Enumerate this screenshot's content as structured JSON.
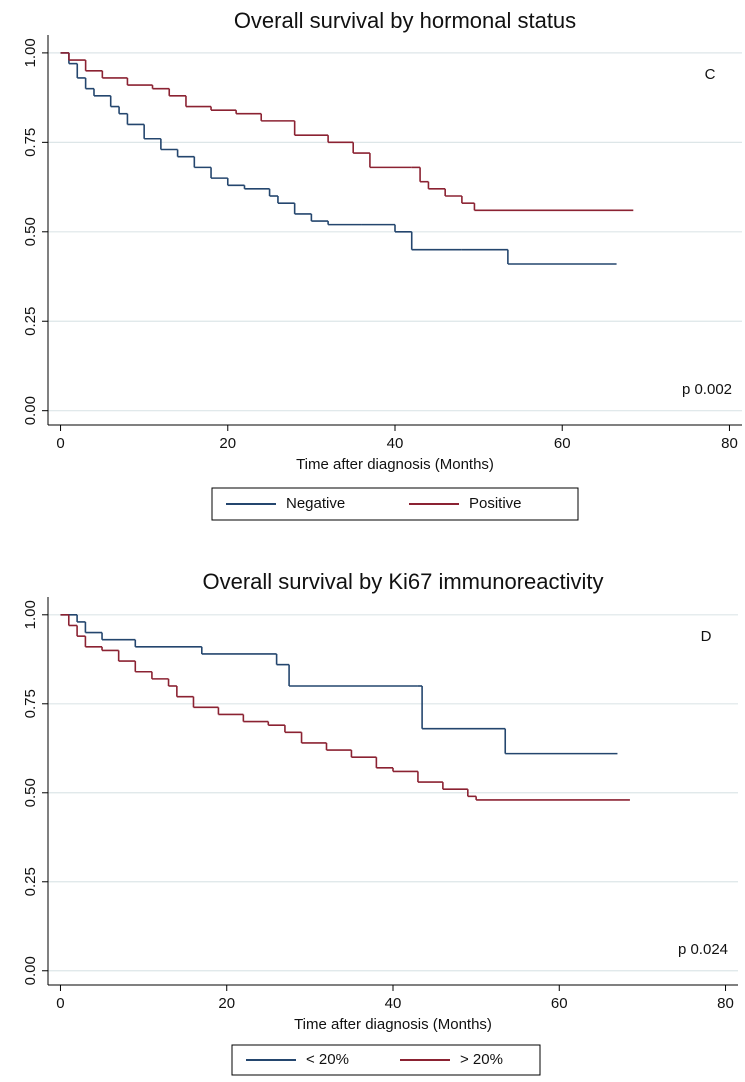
{
  "chart_data": [
    {
      "type": "step",
      "title": "Overall survival by hormonal status",
      "x_label": "Time after diagnosis (Months)",
      "panel_label": "C",
      "p_value_text": "p 0.002",
      "xlim": [
        -1.5,
        81.5
      ],
      "xticks": [
        0,
        20,
        40,
        60,
        80
      ],
      "ylim": [
        -0.04,
        1.05
      ],
      "yticks": [
        {
          "value": 0,
          "label": "0.00"
        },
        {
          "value": 0.25,
          "label": "0.25"
        },
        {
          "value": 0.5,
          "label": "0.50"
        },
        {
          "value": 0.75,
          "label": "0.75"
        },
        {
          "value": 1,
          "label": "1.00"
        }
      ],
      "grid": true,
      "series": [
        {
          "name": "Negative",
          "color": "#24466e",
          "x": [
            0,
            1,
            2,
            3,
            4,
            6,
            7,
            8,
            10,
            12,
            14,
            16,
            18,
            20,
            22,
            25,
            26,
            28,
            30,
            32,
            36,
            40,
            42,
            48,
            53.5,
            66.5
          ],
          "values": [
            1,
            0.97,
            0.93,
            0.9,
            0.88,
            0.85,
            0.83,
            0.8,
            0.76,
            0.73,
            0.71,
            0.68,
            0.65,
            0.63,
            0.62,
            0.6,
            0.58,
            0.55,
            0.53,
            0.52,
            0.52,
            0.5,
            0.45,
            0.45,
            0.41,
            0.41
          ]
        },
        {
          "name": "Positive",
          "color": "#8b2232",
          "x": [
            0,
            1,
            3,
            5,
            8,
            11,
            13,
            15,
            18,
            21,
            24,
            28,
            32,
            35,
            37,
            42,
            43,
            44,
            46,
            48,
            49.5,
            68.5
          ],
          "values": [
            1,
            0.98,
            0.95,
            0.93,
            0.91,
            0.9,
            0.88,
            0.85,
            0.84,
            0.83,
            0.81,
            0.77,
            0.75,
            0.72,
            0.68,
            0.68,
            0.64,
            0.62,
            0.6,
            0.58,
            0.56,
            0.56
          ]
        }
      ]
    },
    {
      "type": "step",
      "title": "Overall survival by Ki67 immunoreactivity",
      "x_label": "Time after diagnosis (Months)",
      "panel_label": "D",
      "p_value_text": "p 0.024",
      "xlim": [
        -1.5,
        81.5
      ],
      "xticks": [
        0,
        20,
        40,
        60,
        80
      ],
      "ylim": [
        -0.04,
        1.05
      ],
      "yticks": [
        {
          "value": 0,
          "label": "0.00"
        },
        {
          "value": 0.25,
          "label": "0.25"
        },
        {
          "value": 0.5,
          "label": "0.50"
        },
        {
          "value": 0.75,
          "label": "0.75"
        },
        {
          "value": 1,
          "label": "1.00"
        }
      ],
      "grid": true,
      "series": [
        {
          "name": "< 20%",
          "color": "#24466e",
          "x": [
            0,
            2,
            3,
            5,
            9,
            17,
            26,
            27.5,
            43,
            43.5,
            53.5,
            67
          ],
          "values": [
            1,
            0.98,
            0.95,
            0.93,
            0.91,
            0.89,
            0.86,
            0.8,
            0.8,
            0.68,
            0.61,
            0.61
          ]
        },
        {
          "name": "> 20%",
          "color": "#8b2232",
          "x": [
            0,
            1,
            2,
            3,
            5,
            7,
            9,
            11,
            13,
            14,
            16,
            19,
            22,
            25,
            27,
            29,
            32,
            35,
            38,
            40,
            43,
            46,
            49,
            50,
            68.5
          ],
          "values": [
            1,
            0.97,
            0.94,
            0.91,
            0.9,
            0.87,
            0.84,
            0.82,
            0.8,
            0.77,
            0.74,
            0.72,
            0.7,
            0.69,
            0.67,
            0.64,
            0.62,
            0.6,
            0.57,
            0.56,
            0.53,
            0.51,
            0.49,
            0.48,
            0.48
          ]
        }
      ]
    }
  ]
}
